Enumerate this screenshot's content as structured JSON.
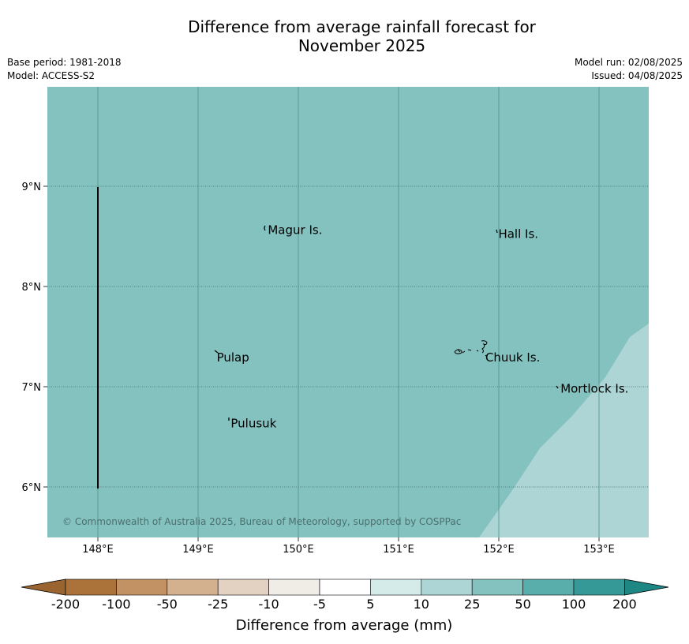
{
  "header": {
    "title_line1": "Difference from average rainfall forecast for",
    "title_line2": "November 2025",
    "base_period": "Base period: 1981-2018",
    "model": "Model: ACCESS-S2",
    "model_run": "Model run: 02/08/2025",
    "issued": "Issued: 04/08/2025"
  },
  "map": {
    "lon_ticks": [
      "148°E",
      "149°E",
      "150°E",
      "151°E",
      "152°E",
      "153°E"
    ],
    "lat_ticks": [
      "9°N",
      "8°N",
      "7°N",
      "6°N"
    ],
    "places": [
      {
        "name": "Magur Is.",
        "lon": 149.68,
        "lat": 8.57
      },
      {
        "name": "Hall Is.",
        "lon": 151.98,
        "lat": 8.53
      },
      {
        "name": "Pulap",
        "lon": 149.17,
        "lat": 7.3
      },
      {
        "name": "Chuuk Is.",
        "lon": 151.85,
        "lat": 7.3
      },
      {
        "name": "Mortlock Is.",
        "lon": 152.6,
        "lat": 6.99
      },
      {
        "name": "Pulusuk",
        "lon": 149.31,
        "lat": 6.64
      }
    ],
    "copyright": "© Commonwealth of Australia 2025, Bureau of Meteorology, supported by COSPPac",
    "base_color": "#84c2c0",
    "light_color": "#add5d5"
  },
  "colorbar": {
    "title": "Difference from average (mm)",
    "labels": [
      "-200",
      "-100",
      "-50",
      "-25",
      "-10",
      "-5",
      "5",
      "10",
      "25",
      "50",
      "100",
      "200"
    ],
    "colors": [
      "#ab723a",
      "#c39264",
      "#d3b08e",
      "#e3d2c2",
      "#f0ede7",
      "#ffffff",
      "#d4ebea",
      "#add5d5",
      "#84c2c0",
      "#59adab",
      "#359a97"
    ],
    "under_color": "#9a6431",
    "over_color": "#1e8784"
  }
}
